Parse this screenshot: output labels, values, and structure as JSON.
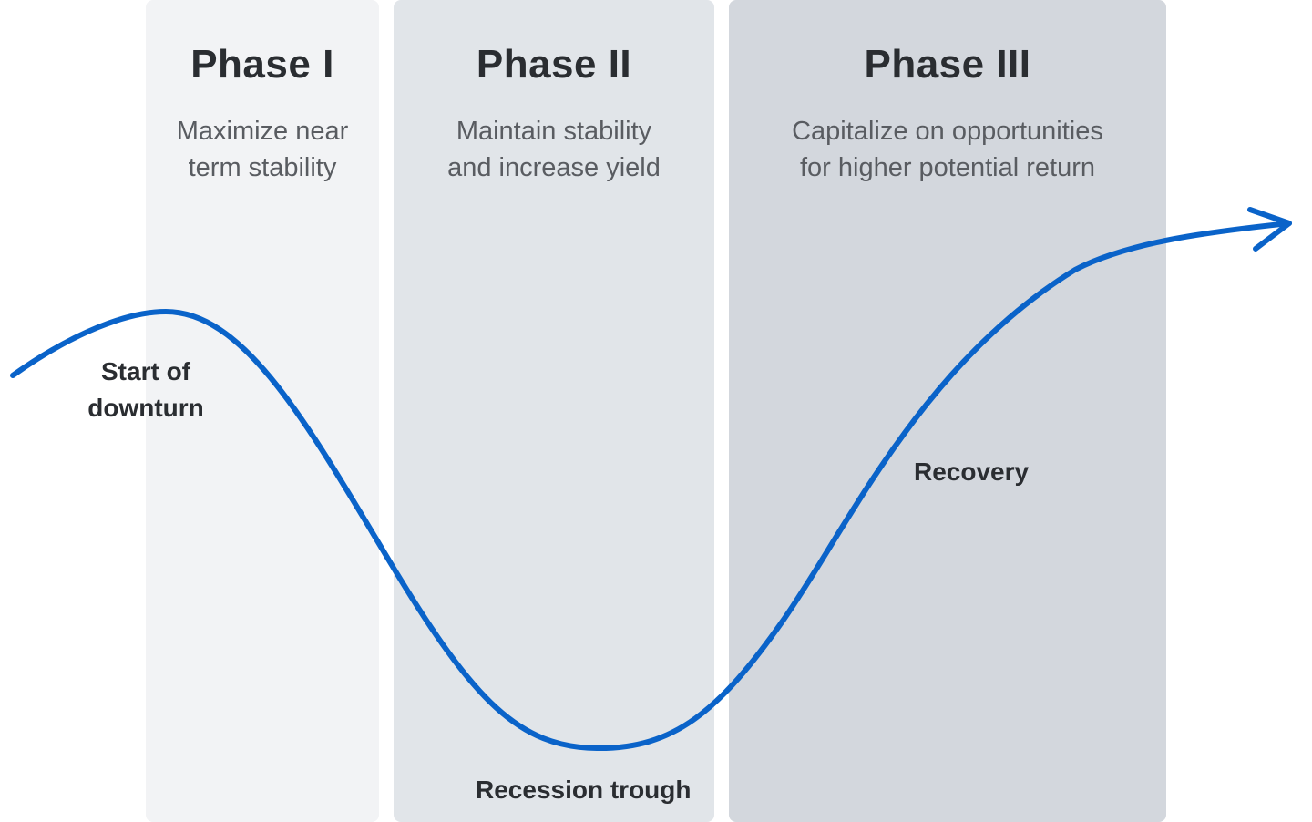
{
  "phases": [
    {
      "title": "Phase I",
      "desc_line1": "Maximize near",
      "desc_line2": "term stability"
    },
    {
      "title": "Phase II",
      "desc_line1": "Maintain stability",
      "desc_line2": "and increase yield"
    },
    {
      "title": "Phase III",
      "desc_line1": "Capitalize on opportunities",
      "desc_line2": "for higher potential return"
    }
  ],
  "labels": {
    "start_line1": "Start of",
    "start_line2": "downturn",
    "recovery": "Recovery",
    "trough": "Recession trough"
  },
  "colors": {
    "curve": "#0a63c9",
    "phase_1_bg": "#f2f3f5",
    "phase_2_bg": "#e1e5e9",
    "phase_3_bg": "#d3d7dd"
  },
  "icons": {
    "curve_end": "arrow-right-icon"
  }
}
